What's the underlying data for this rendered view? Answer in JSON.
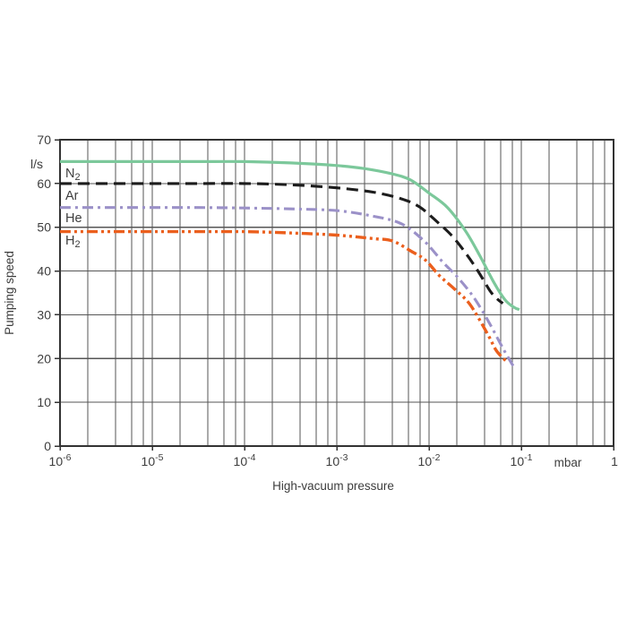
{
  "chart_data": {
    "type": "line",
    "title": "",
    "xlabel": "High-vacuum pressure",
    "ylabel": "Pumping speed",
    "y_unit_label": "l/s",
    "x_unit_label": "mbar",
    "x_axis_end_label": "1",
    "x_scale": "log10",
    "xlim_log10": [
      -6,
      0
    ],
    "ylim": [
      0,
      70
    ],
    "y_ticks": [
      70,
      60,
      50,
      40,
      30,
      20,
      10,
      0
    ],
    "x_major_ticks": [
      {
        "log10": -6,
        "base": "10",
        "exp": "-6"
      },
      {
        "log10": -5,
        "base": "10",
        "exp": "-5"
      },
      {
        "log10": -4,
        "base": "10",
        "exp": "-4"
      },
      {
        "log10": -3,
        "base": "10",
        "exp": "-3"
      },
      {
        "log10": -2,
        "base": "10",
        "exp": "-2"
      },
      {
        "log10": -1,
        "base": "10",
        "exp": "-1"
      }
    ],
    "x_minor_multiples": [
      2,
      4,
      6,
      8
    ],
    "grid": true,
    "legend_position": "inline-left",
    "colors": {
      "grid": "#565656",
      "frame": "#333333",
      "text": "#3d3d3d",
      "background": "#ffffff"
    },
    "series": [
      {
        "name": "N2",
        "label": {
          "base": "N",
          "sub": "2"
        },
        "color": "#7cc89b",
        "style": "solid",
        "dash": [],
        "stroke_width": 3.2,
        "plateau_l_s": 65,
        "points": [
          [
            -6,
            65
          ],
          [
            -5.5,
            65
          ],
          [
            -5,
            65
          ],
          [
            -4.5,
            65
          ],
          [
            -4,
            65
          ],
          [
            -3.5,
            64.7
          ],
          [
            -3,
            64.1
          ],
          [
            -2.7,
            63.4
          ],
          [
            -2.4,
            62.2
          ],
          [
            -2.2,
            60.8
          ],
          [
            -2.0,
            57.8
          ],
          [
            -1.8,
            54.5
          ],
          [
            -1.6,
            49
          ],
          [
            -1.45,
            43.5
          ],
          [
            -1.3,
            37.5
          ],
          [
            -1.18,
            33.5
          ],
          [
            -1.08,
            31.7
          ],
          [
            -1.02,
            31.2
          ]
        ]
      },
      {
        "name": "Ar",
        "label": {
          "base": "Ar",
          "sub": ""
        },
        "color": "#1c1c1c",
        "style": "dashed",
        "dash": [
          13,
          7
        ],
        "stroke_width": 3.1,
        "plateau_l_s": 60,
        "points": [
          [
            -6,
            60
          ],
          [
            -5.5,
            60
          ],
          [
            -5,
            60
          ],
          [
            -4.5,
            60
          ],
          [
            -4,
            60
          ],
          [
            -3.5,
            59.7
          ],
          [
            -3,
            59
          ],
          [
            -2.6,
            58
          ],
          [
            -2.3,
            56.5
          ],
          [
            -2.1,
            54.6
          ],
          [
            -1.9,
            51
          ],
          [
            -1.75,
            48
          ],
          [
            -1.6,
            44
          ],
          [
            -1.47,
            40
          ],
          [
            -1.34,
            35.5
          ],
          [
            -1.26,
            33.6
          ],
          [
            -1.2,
            32.6
          ]
        ]
      },
      {
        "name": "He",
        "label": {
          "base": "He",
          "sub": ""
        },
        "color": "#9b91c8",
        "style": "dash-dot",
        "dash": [
          12,
          5,
          3,
          5
        ],
        "stroke_width": 3.1,
        "plateau_l_s": 54.5,
        "points": [
          [
            -6,
            54.5
          ],
          [
            -5.5,
            54.5
          ],
          [
            -5,
            54.5
          ],
          [
            -4.5,
            54.5
          ],
          [
            -4,
            54.4
          ],
          [
            -3.5,
            54.2
          ],
          [
            -3,
            53.8
          ],
          [
            -2.6,
            52.5
          ],
          [
            -2.3,
            50.8
          ],
          [
            -2.05,
            46.8
          ],
          [
            -1.85,
            42
          ],
          [
            -1.7,
            38.8
          ],
          [
            -1.55,
            35
          ],
          [
            -1.44,
            31.5
          ],
          [
            -1.33,
            27.5
          ],
          [
            -1.19,
            22
          ],
          [
            -1.08,
            18
          ]
        ]
      },
      {
        "name": "H2",
        "label": {
          "base": "H",
          "sub": "2"
        },
        "color": "#eb5f1d",
        "style": "dash-dot-dot",
        "dash": [
          12,
          4,
          3,
          4,
          3,
          4
        ],
        "stroke_width": 3.4,
        "plateau_l_s": 49,
        "points": [
          [
            -6,
            49
          ],
          [
            -5.5,
            49
          ],
          [
            -5,
            49
          ],
          [
            -4.5,
            49
          ],
          [
            -4,
            49
          ],
          [
            -3.5,
            48.7
          ],
          [
            -3,
            48.2
          ],
          [
            -2.6,
            47.4
          ],
          [
            -2.4,
            46.9
          ],
          [
            -2.2,
            44.6
          ],
          [
            -2.04,
            42.5
          ],
          [
            -1.89,
            39
          ],
          [
            -1.73,
            36
          ],
          [
            -1.58,
            33
          ],
          [
            -1.47,
            29.5
          ],
          [
            -1.35,
            25
          ],
          [
            -1.27,
            21.8
          ],
          [
            -1.17,
            19.5
          ]
        ]
      }
    ]
  }
}
